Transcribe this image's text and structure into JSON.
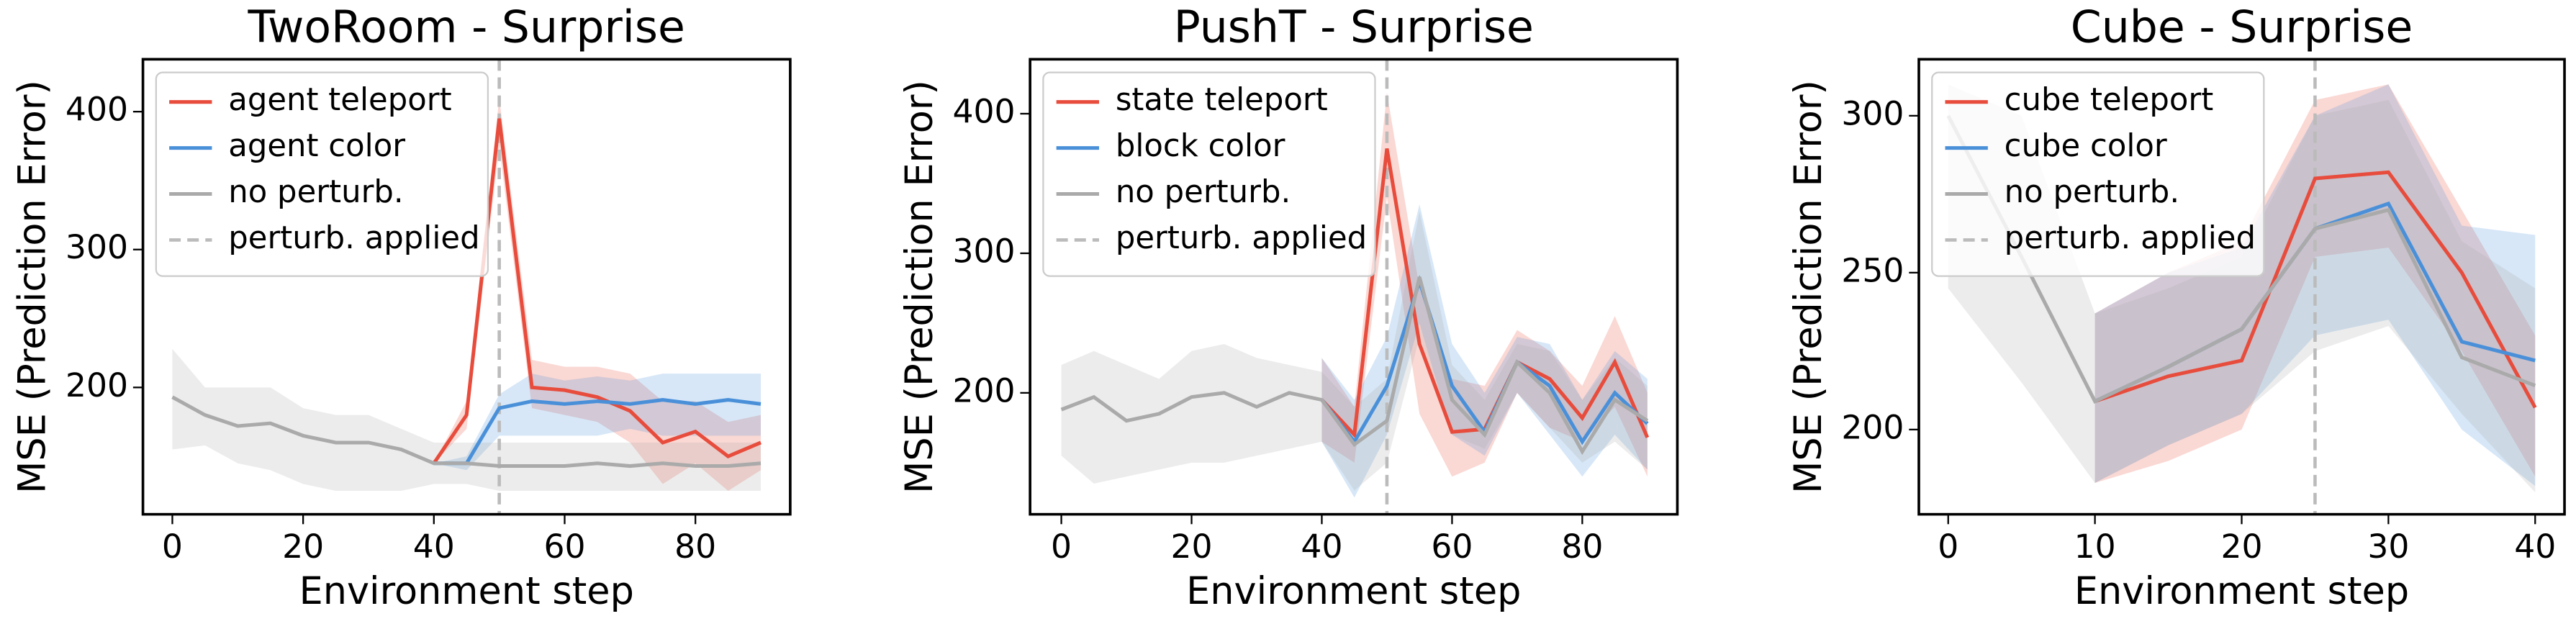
{
  "chart_data": [
    {
      "type": "line",
      "title": "TwoRoom - Surprise",
      "x_label": "Environment step",
      "y_label": "MSE (Prediction Error)",
      "x": [
        0,
        5,
        10,
        15,
        20,
        25,
        30,
        35,
        40,
        45,
        50,
        55,
        60,
        65,
        70,
        75,
        80,
        85,
        90
      ],
      "series": [
        {
          "name": "agent teleport",
          "color": "#e74c3c",
          "values": [
            null,
            null,
            null,
            null,
            null,
            null,
            null,
            null,
            145,
            180,
            395,
            200,
            198,
            193,
            183,
            160,
            168,
            150,
            160
          ],
          "lower": [
            null,
            null,
            null,
            null,
            null,
            null,
            null,
            null,
            145,
            170,
            375,
            185,
            180,
            175,
            160,
            130,
            145,
            125,
            140
          ],
          "upper": [
            null,
            null,
            null,
            null,
            null,
            null,
            null,
            null,
            145,
            190,
            410,
            220,
            215,
            215,
            210,
            190,
            190,
            175,
            180
          ]
        },
        {
          "name": "agent color",
          "color": "#4a90d9",
          "values": [
            null,
            null,
            null,
            null,
            null,
            null,
            null,
            null,
            145,
            145,
            185,
            190,
            188,
            190,
            188,
            191,
            188,
            191,
            188
          ],
          "lower": [
            null,
            null,
            null,
            null,
            null,
            null,
            null,
            null,
            145,
            140,
            165,
            165,
            165,
            165,
            170,
            165,
            165,
            165,
            165
          ],
          "upper": [
            null,
            null,
            null,
            null,
            null,
            null,
            null,
            null,
            145,
            150,
            195,
            210,
            205,
            208,
            205,
            210,
            210,
            210,
            210
          ]
        },
        {
          "name": "no perturb.",
          "color": "#aaaaaa",
          "values": [
            193,
            180,
            172,
            174,
            165,
            160,
            160,
            155,
            145,
            145,
            143,
            143,
            143,
            145,
            143,
            145,
            143,
            143,
            145
          ],
          "lower": [
            155,
            158,
            145,
            140,
            130,
            125,
            125,
            125,
            130,
            130,
            125,
            125,
            125,
            125,
            125,
            125,
            125,
            125,
            125
          ],
          "upper": [
            228,
            200,
            200,
            200,
            185,
            180,
            180,
            170,
            160,
            160,
            160,
            160,
            160,
            160,
            160,
            160,
            160,
            160,
            160
          ]
        }
      ],
      "vline": {
        "x": 50,
        "name": "perturb. applied",
        "color": "#bbbbbb"
      },
      "xlim": [
        -4.5,
        94.5
      ],
      "ylim": [
        108,
        438
      ],
      "xticks": [
        0,
        20,
        40,
        60,
        80
      ],
      "yticks": [
        200,
        300,
        400
      ],
      "legend": "upper left"
    },
    {
      "type": "line",
      "title": "PushT - Surprise",
      "x_label": "Environment step",
      "y_label": "MSE (Prediction Error)",
      "x": [
        0,
        5,
        10,
        15,
        20,
        25,
        30,
        35,
        40,
        45,
        50,
        55,
        60,
        65,
        70,
        75,
        80,
        85,
        90
      ],
      "series": [
        {
          "name": "state teleport",
          "color": "#e74c3c",
          "values": [
            null,
            null,
            null,
            null,
            null,
            null,
            null,
            null,
            195,
            170,
            375,
            235,
            172,
            174,
            222,
            210,
            182,
            222,
            168
          ],
          "lower": [
            null,
            null,
            null,
            null,
            null,
            null,
            null,
            null,
            165,
            150,
            340,
            185,
            140,
            150,
            200,
            175,
            165,
            190,
            140
          ],
          "upper": [
            null,
            null,
            null,
            null,
            null,
            null,
            null,
            null,
            225,
            190,
            415,
            275,
            210,
            205,
            245,
            230,
            205,
            255,
            200
          ]
        },
        {
          "name": "block color",
          "color": "#4a90d9",
          "values": [
            null,
            null,
            null,
            null,
            null,
            null,
            null,
            null,
            195,
            165,
            205,
            280,
            205,
            172,
            222,
            205,
            165,
            200,
            178
          ],
          "lower": [
            null,
            null,
            null,
            null,
            null,
            null,
            null,
            null,
            165,
            125,
            170,
            250,
            170,
            155,
            200,
            170,
            140,
            170,
            145
          ],
          "upper": [
            null,
            null,
            null,
            null,
            null,
            null,
            null,
            null,
            225,
            195,
            240,
            335,
            235,
            200,
            240,
            235,
            195,
            230,
            210
          ]
        },
        {
          "name": "no perturb.",
          "color": "#aaaaaa",
          "values": [
            188,
            197,
            180,
            185,
            197,
            200,
            190,
            200,
            195,
            163,
            180,
            283,
            195,
            170,
            222,
            200,
            158,
            195,
            180
          ],
          "lower": [
            155,
            135,
            140,
            145,
            150,
            150,
            155,
            160,
            165,
            130,
            150,
            240,
            170,
            160,
            200,
            175,
            150,
            165,
            145
          ],
          "upper": [
            220,
            230,
            220,
            210,
            230,
            235,
            225,
            220,
            215,
            190,
            210,
            330,
            220,
            195,
            235,
            230,
            195,
            225,
            205
          ]
        }
      ],
      "vline": {
        "x": 50,
        "name": "perturb. applied",
        "color": "#bbbbbb"
      },
      "xlim": [
        -4.8,
        94.6
      ],
      "ylim": [
        113,
        439
      ],
      "xticks": [
        0,
        20,
        40,
        60,
        80
      ],
      "yticks": [
        200,
        300,
        400
      ],
      "legend": "upper left"
    },
    {
      "type": "line",
      "title": "Cube - Surprise",
      "x_label": "Environment step",
      "y_label": "MSE (Prediction Error)",
      "x": [
        0,
        5,
        10,
        15,
        20,
        25,
        30,
        35,
        40
      ],
      "series": [
        {
          "name": "cube teleport",
          "color": "#e74c3c",
          "values": [
            null,
            null,
            209,
            217,
            222,
            280,
            282,
            250,
            207
          ],
          "lower": [
            null,
            null,
            183,
            190,
            200,
            255,
            258,
            225,
            185
          ],
          "upper": [
            null,
            null,
            237,
            250,
            260,
            305,
            310,
            270,
            230
          ]
        },
        {
          "name": "cube color",
          "color": "#4a90d9",
          "values": [
            null,
            null,
            209,
            220,
            232,
            264,
            272,
            228,
            222
          ],
          "lower": [
            null,
            null,
            183,
            195,
            205,
            230,
            235,
            200,
            182
          ],
          "upper": [
            null,
            null,
            237,
            250,
            258,
            300,
            310,
            265,
            262
          ]
        },
        {
          "name": "no perturb.",
          "color": "#aaaaaa",
          "values": [
            300,
            255,
            209,
            220,
            232,
            264,
            270,
            223,
            214
          ],
          "lower": [
            245,
            215,
            183,
            195,
            205,
            225,
            233,
            205,
            180
          ],
          "upper": [
            310,
            300,
            237,
            245,
            255,
            300,
            305,
            260,
            245
          ]
        }
      ],
      "vline": {
        "x": 25,
        "name": "perturb. applied",
        "color": "#bbbbbb"
      },
      "xlim": [
        -2,
        42
      ],
      "ylim": [
        173,
        318
      ],
      "xticks": [
        0,
        10,
        20,
        30,
        40
      ],
      "yticks": [
        200,
        250,
        300
      ],
      "legend": "upper left"
    }
  ]
}
